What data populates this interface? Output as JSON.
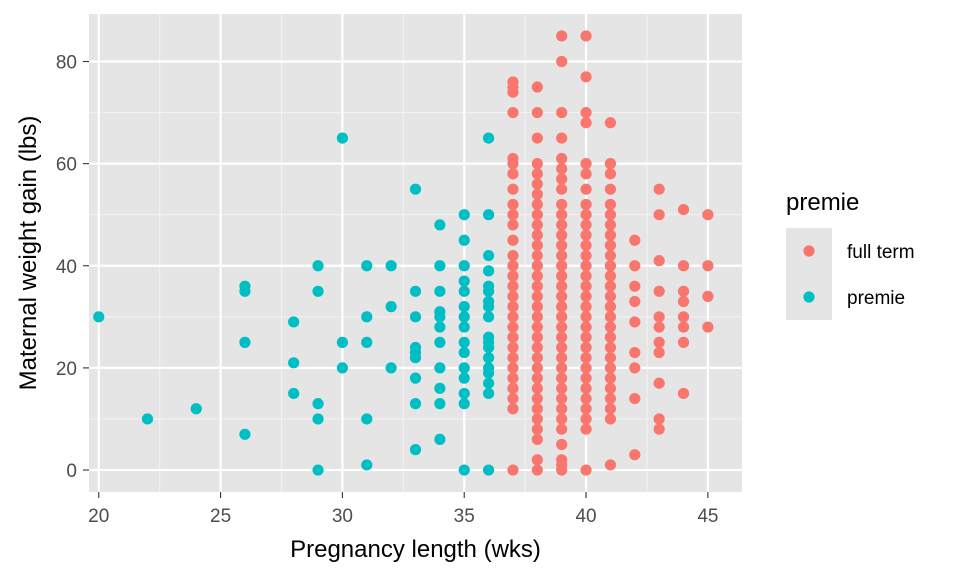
{
  "chart_data": {
    "type": "scatter",
    "xlabel": "Pregnancy length (wks)",
    "ylabel": "Maternal weight gain (lbs)",
    "xlim": [
      19.6,
      46.4
    ],
    "ylim": [
      -4.3,
      89.3
    ],
    "x_ticks": [
      20,
      25,
      30,
      35,
      40,
      45
    ],
    "y_ticks": [
      0,
      20,
      40,
      60,
      80
    ],
    "grid": true,
    "background": "#e5e5e5",
    "legend": {
      "title": "premie",
      "position": "right",
      "entries": [
        {
          "label": "full term",
          "color": "#f8766d"
        },
        {
          "label": "premie",
          "color": "#00bfc4"
        }
      ]
    },
    "series": [
      {
        "name": "full term",
        "color": "#f8766d",
        "points": [
          [
            37,
            0
          ],
          [
            37,
            12
          ],
          [
            37,
            14
          ],
          [
            37,
            16
          ],
          [
            37,
            18
          ],
          [
            37,
            20
          ],
          [
            37,
            22
          ],
          [
            37,
            24
          ],
          [
            37,
            26
          ],
          [
            37,
            28
          ],
          [
            37,
            30
          ],
          [
            37,
            32
          ],
          [
            37,
            34
          ],
          [
            37,
            36
          ],
          [
            37,
            38
          ],
          [
            37,
            40
          ],
          [
            37,
            42
          ],
          [
            37,
            45
          ],
          [
            37,
            48
          ],
          [
            37,
            50
          ],
          [
            37,
            52
          ],
          [
            37,
            55
          ],
          [
            37,
            58
          ],
          [
            37,
            60
          ],
          [
            37,
            61
          ],
          [
            37,
            70
          ],
          [
            37,
            74
          ],
          [
            37,
            75
          ],
          [
            37,
            76
          ],
          [
            38,
            0
          ],
          [
            38,
            2
          ],
          [
            38,
            6
          ],
          [
            38,
            8
          ],
          [
            38,
            10
          ],
          [
            38,
            12
          ],
          [
            38,
            14
          ],
          [
            38,
            16
          ],
          [
            38,
            18
          ],
          [
            38,
            20
          ],
          [
            38,
            22
          ],
          [
            38,
            24
          ],
          [
            38,
            26
          ],
          [
            38,
            28
          ],
          [
            38,
            30
          ],
          [
            38,
            32
          ],
          [
            38,
            34
          ],
          [
            38,
            36
          ],
          [
            38,
            38
          ],
          [
            38,
            40
          ],
          [
            38,
            42
          ],
          [
            38,
            44
          ],
          [
            38,
            46
          ],
          [
            38,
            48
          ],
          [
            38,
            50
          ],
          [
            38,
            52
          ],
          [
            38,
            54
          ],
          [
            38,
            56
          ],
          [
            38,
            58
          ],
          [
            38,
            60
          ],
          [
            38,
            65
          ],
          [
            38,
            70
          ],
          [
            38,
            75
          ],
          [
            39,
            0
          ],
          [
            39,
            1
          ],
          [
            39,
            2
          ],
          [
            39,
            5
          ],
          [
            39,
            8
          ],
          [
            39,
            10
          ],
          [
            39,
            12
          ],
          [
            39,
            14
          ],
          [
            39,
            16
          ],
          [
            39,
            18
          ],
          [
            39,
            20
          ],
          [
            39,
            22
          ],
          [
            39,
            24
          ],
          [
            39,
            26
          ],
          [
            39,
            28
          ],
          [
            39,
            30
          ],
          [
            39,
            32
          ],
          [
            39,
            34
          ],
          [
            39,
            36
          ],
          [
            39,
            38
          ],
          [
            39,
            40
          ],
          [
            39,
            42
          ],
          [
            39,
            44
          ],
          [
            39,
            46
          ],
          [
            39,
            48
          ],
          [
            39,
            50
          ],
          [
            39,
            52
          ],
          [
            39,
            55
          ],
          [
            39,
            57
          ],
          [
            39,
            59
          ],
          [
            39,
            61
          ],
          [
            39,
            65
          ],
          [
            39,
            70
          ],
          [
            39,
            80
          ],
          [
            39,
            85
          ],
          [
            40,
            0
          ],
          [
            40,
            8
          ],
          [
            40,
            10
          ],
          [
            40,
            12
          ],
          [
            40,
            14
          ],
          [
            40,
            16
          ],
          [
            40,
            18
          ],
          [
            40,
            20
          ],
          [
            40,
            22
          ],
          [
            40,
            24
          ],
          [
            40,
            26
          ],
          [
            40,
            28
          ],
          [
            40,
            30
          ],
          [
            40,
            32
          ],
          [
            40,
            34
          ],
          [
            40,
            36
          ],
          [
            40,
            38
          ],
          [
            40,
            40
          ],
          [
            40,
            42
          ],
          [
            40,
            44
          ],
          [
            40,
            46
          ],
          [
            40,
            48
          ],
          [
            40,
            50
          ],
          [
            40,
            52
          ],
          [
            40,
            55
          ],
          [
            40,
            58
          ],
          [
            40,
            60
          ],
          [
            40,
            68
          ],
          [
            40,
            70
          ],
          [
            40,
            77
          ],
          [
            40,
            85
          ],
          [
            41,
            1
          ],
          [
            41,
            10
          ],
          [
            41,
            12
          ],
          [
            41,
            14
          ],
          [
            41,
            16
          ],
          [
            41,
            18
          ],
          [
            41,
            20
          ],
          [
            41,
            22
          ],
          [
            41,
            24
          ],
          [
            41,
            26
          ],
          [
            41,
            28
          ],
          [
            41,
            30
          ],
          [
            41,
            32
          ],
          [
            41,
            34
          ],
          [
            41,
            36
          ],
          [
            41,
            38
          ],
          [
            41,
            40
          ],
          [
            41,
            42
          ],
          [
            41,
            44
          ],
          [
            41,
            46
          ],
          [
            41,
            48
          ],
          [
            41,
            50
          ],
          [
            41,
            52
          ],
          [
            41,
            55
          ],
          [
            41,
            58
          ],
          [
            41,
            60
          ],
          [
            41,
            68
          ],
          [
            42,
            3
          ],
          [
            42,
            14
          ],
          [
            42,
            20
          ],
          [
            42,
            23
          ],
          [
            42,
            29
          ],
          [
            42,
            33
          ],
          [
            42,
            36
          ],
          [
            42,
            40
          ],
          [
            42,
            45
          ],
          [
            43,
            8
          ],
          [
            43,
            10
          ],
          [
            43,
            17
          ],
          [
            43,
            23
          ],
          [
            43,
            25
          ],
          [
            43,
            28
          ],
          [
            43,
            30
          ],
          [
            43,
            35
          ],
          [
            43,
            41
          ],
          [
            43,
            50
          ],
          [
            43,
            55
          ],
          [
            44,
            15
          ],
          [
            44,
            25
          ],
          [
            44,
            28
          ],
          [
            44,
            30
          ],
          [
            44,
            33
          ],
          [
            44,
            35
          ],
          [
            44,
            40
          ],
          [
            44,
            51
          ],
          [
            45,
            28
          ],
          [
            45,
            34
          ],
          [
            45,
            40
          ],
          [
            45,
            50
          ]
        ]
      },
      {
        "name": "premie",
        "color": "#00bfc4",
        "points": [
          [
            20,
            30
          ],
          [
            22,
            10
          ],
          [
            24,
            12
          ],
          [
            26,
            7
          ],
          [
            26,
            25
          ],
          [
            26,
            35
          ],
          [
            26,
            36
          ],
          [
            28,
            15
          ],
          [
            28,
            21
          ],
          [
            28,
            29
          ],
          [
            29,
            0
          ],
          [
            29,
            10
          ],
          [
            29,
            13
          ],
          [
            29,
            35
          ],
          [
            29,
            40
          ],
          [
            30,
            20
          ],
          [
            30,
            25
          ],
          [
            30,
            65
          ],
          [
            31,
            1
          ],
          [
            31,
            10
          ],
          [
            31,
            25
          ],
          [
            31,
            30
          ],
          [
            31,
            40
          ],
          [
            32,
            20
          ],
          [
            32,
            32
          ],
          [
            32,
            40
          ],
          [
            33,
            4
          ],
          [
            33,
            13
          ],
          [
            33,
            18
          ],
          [
            33,
            22
          ],
          [
            33,
            23
          ],
          [
            33,
            24
          ],
          [
            33,
            30
          ],
          [
            33,
            35
          ],
          [
            33,
            55
          ],
          [
            34,
            6
          ],
          [
            34,
            13
          ],
          [
            34,
            16
          ],
          [
            34,
            20
          ],
          [
            34,
            25
          ],
          [
            34,
            28
          ],
          [
            34,
            30
          ],
          [
            34,
            31
          ],
          [
            34,
            35
          ],
          [
            34,
            40
          ],
          [
            34,
            48
          ],
          [
            35,
            0
          ],
          [
            35,
            13
          ],
          [
            35,
            15
          ],
          [
            35,
            18
          ],
          [
            35,
            20
          ],
          [
            35,
            23
          ],
          [
            35,
            25
          ],
          [
            35,
            28
          ],
          [
            35,
            30
          ],
          [
            35,
            32
          ],
          [
            35,
            35
          ],
          [
            35,
            37
          ],
          [
            35,
            40
          ],
          [
            35,
            45
          ],
          [
            35,
            50
          ],
          [
            36,
            0
          ],
          [
            36,
            15
          ],
          [
            36,
            17
          ],
          [
            36,
            19
          ],
          [
            36,
            20
          ],
          [
            36,
            22
          ],
          [
            36,
            24
          ],
          [
            36,
            25
          ],
          [
            36,
            26
          ],
          [
            36,
            30
          ],
          [
            36,
            32
          ],
          [
            36,
            33
          ],
          [
            36,
            35
          ],
          [
            36,
            36
          ],
          [
            36,
            39
          ],
          [
            36,
            42
          ],
          [
            36,
            50
          ],
          [
            36,
            65
          ]
        ]
      }
    ]
  }
}
